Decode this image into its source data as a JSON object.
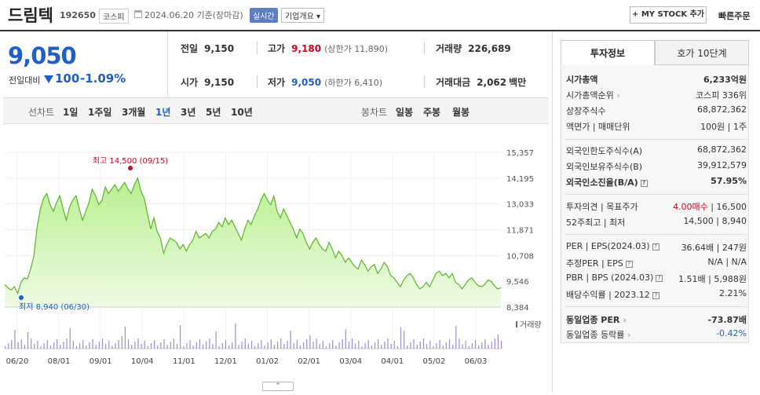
{
  "header": {
    "title": "드림텍",
    "code": "192650",
    "market": "코스피",
    "date": "2024.06.20 기준(장마감)",
    "realtime_label": "실시간",
    "overview_label": "기업개요",
    "mystock_label": "+ MY STOCK 추가",
    "quick_order_label": "빠른주문"
  },
  "price": {
    "current": "9,050",
    "change_label": "전일대비",
    "change": "100",
    "change_pct": "-1.09%"
  },
  "quotes": {
    "prev_label": "전일",
    "prev": "9,150",
    "high_label": "고가",
    "high": "9,180",
    "upper_limit": "(상한가 11,890)",
    "volume_label": "거래량",
    "volume": "226,689",
    "open_label": "시가",
    "open": "9,150",
    "low_label": "저가",
    "low": "9,050",
    "lower_limit": "(하한가 6,410)",
    "amount_label": "거래대금",
    "amount": "2,062",
    "amount_unit": "백만"
  },
  "period_bar": {
    "line_label": "선차트",
    "periods": [
      "1일",
      "1주일",
      "3개월",
      "1년",
      "3년",
      "5년",
      "10년"
    ],
    "candle_label": "봉차트",
    "candles": [
      "일봉",
      "주봉",
      "월봉"
    ]
  },
  "chart_data": {
    "type": "area",
    "y_ticks": [
      "15,357",
      "14,195",
      "13,033",
      "11,871",
      "10,708",
      "9,546",
      "8,384"
    ],
    "x_ticks": [
      "06/20",
      "08/01",
      "09/01",
      "10/04",
      "11/01",
      "12/01",
      "01/02",
      "02/01",
      "03/04",
      "04/01",
      "05/02",
      "06/03"
    ],
    "ylim": [
      8384,
      15357
    ],
    "high_annotation": "최고 14,500 (09/15)",
    "low_annotation": "최저 8,940 (06/30)",
    "volume_label": "거래량",
    "values": [
      9400,
      9250,
      9150,
      9300,
      9000,
      9500,
      9700,
      9650,
      10100,
      10700,
      12000,
      12800,
      13300,
      13500,
      13000,
      12700,
      13100,
      13400,
      12800,
      12300,
      12900,
      13200,
      13400,
      12800,
      12300,
      12700,
      13100,
      13700,
      13400,
      13000,
      13200,
      13800,
      13500,
      13700,
      13900,
      13600,
      13800,
      14000,
      13700,
      13500,
      13900,
      14200,
      13600,
      13300,
      12600,
      11900,
      12400,
      11800,
      11500,
      10800,
      11200,
      11500,
      11400,
      11300,
      11000,
      11200,
      10900,
      11200,
      11400,
      11800,
      11500,
      11600,
      11700,
      11500,
      11800,
      11900,
      12200,
      12000,
      12400,
      12100,
      12300,
      12000,
      11700,
      11400,
      11900,
      12300,
      12100,
      12500,
      12800,
      13200,
      13500,
      13200,
      13000,
      13400,
      12700,
      12400,
      12800,
      12500,
      12200,
      11900,
      11500,
      11900,
      11700,
      11300,
      11000,
      11300,
      11500,
      11200,
      11000,
      10900,
      11300,
      11000,
      10600,
      10900,
      10700,
      10400,
      10600,
      10400,
      10200,
      10100,
      10500,
      10300,
      10000,
      10200,
      10300,
      9900,
      10100,
      10400,
      10200,
      9800,
      9700,
      9500,
      9300,
      9600,
      9800,
      9900,
      9700,
      9400,
      9200,
      9300,
      9500,
      9300,
      9600,
      9900,
      10000,
      9800,
      9900,
      9700,
      9900,
      9500,
      9400,
      9200,
      9400,
      9600,
      9700,
      9500,
      9350,
      9300,
      9400,
      9600,
      9550,
      9350,
      9200,
      9250
    ]
  },
  "right_panel": {
    "tab_active": "투자정보",
    "tab": "호가 10단계",
    "section1": [
      {
        "k": "시가총액",
        "v": "6,233억원",
        "bold": true
      },
      {
        "k": "시가총액순위",
        "v": "코스피 336위"
      },
      {
        "k": "상장주식수",
        "v": "68,872,362"
      },
      {
        "k": "액면가 | 매매단위",
        "v": "100원 | 1주"
      }
    ],
    "section2": [
      {
        "k": "외국인한도주식수(A)",
        "v": "68,872,362"
      },
      {
        "k": "외국인보유주식수(B)",
        "v": "39,912,579"
      },
      {
        "k": "외국인소진율(B/A)",
        "v": "57.95%",
        "bold": true
      }
    ],
    "section3": [
      {
        "k": "투자의견 | 목표주가",
        "v_red": "4.00매수",
        "v": "16,500"
      },
      {
        "k": "52주최고 | 최저",
        "v": "14,500 | 8,940"
      }
    ],
    "section4": [
      {
        "k": "PER | EPS(2024.03)",
        "v": "36.64배 | 247원"
      },
      {
        "k": "추정PER | EPS",
        "v": "N/A | N/A"
      },
      {
        "k": "PBR | BPS (2024.03)",
        "v": "1.51배 | 5,988원"
      },
      {
        "k": "배당수익률 | 2023.12",
        "v": "2.21%"
      }
    ],
    "section5": [
      {
        "k": "동일업종 PER",
        "v": "-73.87배",
        "bold": true
      },
      {
        "k": "동일업종 등락률",
        "v": "-0.42%",
        "blue": true
      }
    ]
  }
}
